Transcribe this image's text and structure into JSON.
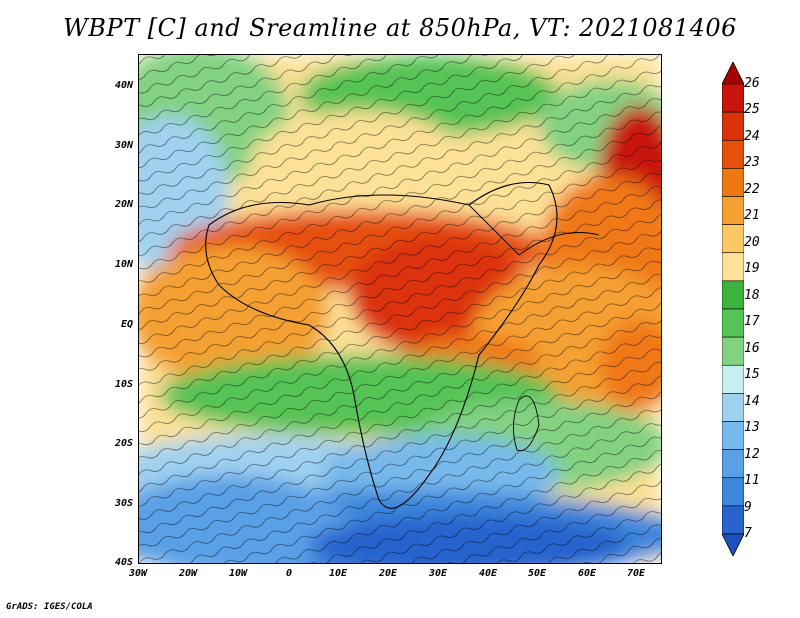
{
  "title": "WBPT [C] and Sreamline at 850hPa, VT: 2021081406",
  "credit": "GrADS: IGES/COLA",
  "map": {
    "lat_labels": [
      "40N",
      "30N",
      "20N",
      "10N",
      "EQ",
      "10S",
      "20S",
      "30S",
      "40S"
    ],
    "lon_labels": [
      "30W",
      "20W",
      "10W",
      "0",
      "10E",
      "20E",
      "30E",
      "40E",
      "50E",
      "60E",
      "70E"
    ]
  },
  "colorbar": {
    "labels": [
      "26",
      "25",
      "24",
      "23",
      "22",
      "21",
      "20",
      "19",
      "18",
      "17",
      "16",
      "15",
      "14",
      "13",
      "12",
      "11",
      "9",
      "7"
    ],
    "colors": [
      "#a50000",
      "#c8140a",
      "#dc320a",
      "#e6500a",
      "#f07814",
      "#f5a032",
      "#fac864",
      "#fde196",
      "#3cb43c",
      "#55c355",
      "#82d282",
      "#c8f0f0",
      "#a0d2f0",
      "#78b9eb",
      "#5aa0e6",
      "#3c87dc",
      "#2864cd",
      "#1e50be"
    ]
  },
  "colors": {
    "hot": "#dc3c0a",
    "warm": "#f5a032",
    "mild": "#fde196",
    "green": "#55c355",
    "cool": "#a0d2f0",
    "cold": "#2864cd"
  }
}
